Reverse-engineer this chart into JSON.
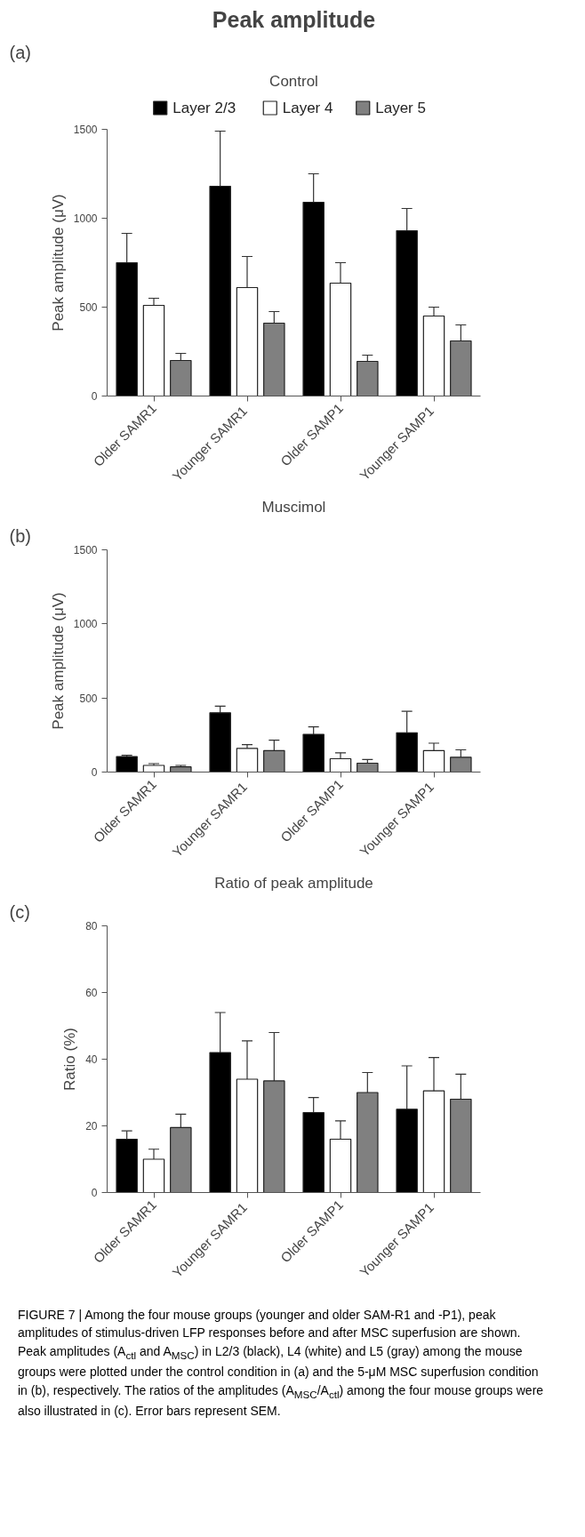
{
  "chart_data": [
    {
      "type": "bar",
      "title": "Peak amplitude",
      "subtitle": "Control",
      "annotations": [
        "(a)"
      ],
      "ylabel": "Peak amplitude (μV)",
      "categories": [
        "Older SAMR1",
        "Younger  SAMR1",
        "Older SAMP1",
        "Younger  SAMP1"
      ],
      "ylim": [
        0,
        1500
      ],
      "yticks": [
        0,
        500,
        1000,
        1500
      ],
      "legend": "top",
      "series": [
        {
          "name": "Layer 2/3",
          "color": "#000000",
          "values": [
            750,
            1180,
            1090,
            930
          ],
          "errors": [
            165,
            310,
            160,
            125
          ]
        },
        {
          "name": "Layer 4",
          "color": "#ffffff",
          "values": [
            510,
            610,
            635,
            450
          ],
          "errors": [
            40,
            175,
            115,
            50
          ]
        },
        {
          "name": "Layer 5",
          "color": "#808080",
          "values": [
            200,
            410,
            195,
            310
          ],
          "errors": [
            40,
            65,
            35,
            90
          ]
        }
      ]
    },
    {
      "type": "bar",
      "title": "Muscimol",
      "annotations": [
        "(b)"
      ],
      "ylabel": "Peak amplitude (μV)",
      "categories": [
        "Older SAMR1",
        "Younger  SAMR1",
        "Older SAMP1",
        "Younger  SAMP1"
      ],
      "ylim": [
        0,
        1500
      ],
      "yticks": [
        0,
        500,
        1000,
        1500
      ],
      "series": [
        {
          "color": "#000000",
          "values": [
            105,
            400,
            255,
            265
          ],
          "errors": [
            8,
            45,
            50,
            145
          ]
        },
        {
          "color": "#ffffff",
          "values": [
            45,
            160,
            90,
            145
          ],
          "errors": [
            12,
            25,
            40,
            50
          ]
        },
        {
          "color": "#808080",
          "values": [
            35,
            145,
            60,
            100
          ],
          "errors": [
            10,
            70,
            25,
            50
          ]
        }
      ]
    },
    {
      "type": "bar",
      "title": "Ratio of peak amplitude",
      "annotations": [
        "(c)",
        "FIGURE 7 | Among the four mouse groups (younger and older SAM-R1 and -P1), peak amplitudes of stimulus-driven LFP responses before and after MSC superfusion are shown. Peak amplitudes (A$_{ctl}$ and A$_{MSC}$) in L2/3 (black), L4 (white) and L5 (gray) among the mouse groups were plotted under the control condition in (a) and the 5-μM MSC superfusion condition in (b), respectively. The ratios of the amplitudes (A$_{MSC}$/A$_{ctl}$) among the four mouse groups were also illustrated in (c). Error bars represent SEM."
      ],
      "ylabel": "Ratio (%)",
      "categories": [
        "Older SAMR1",
        "Younger  SAMR1",
        "Older SAMP1",
        "Younger  SAMP1"
      ],
      "ylim": [
        0,
        80
      ],
      "yticks": [
        0,
        20,
        40,
        60,
        80
      ],
      "series": [
        {
          "color": "#000000",
          "values": [
            16,
            42,
            24,
            25
          ],
          "errors": [
            2.5,
            12,
            4.5,
            13
          ]
        },
        {
          "color": "#ffffff",
          "values": [
            10,
            34,
            16,
            30.5
          ],
          "errors": [
            3,
            11.5,
            5.5,
            10
          ]
        },
        {
          "color": "#808080",
          "values": [
            19.5,
            33.5,
            30,
            28
          ],
          "errors": [
            4,
            14.5,
            6,
            7.5
          ]
        }
      ]
    }
  ]
}
